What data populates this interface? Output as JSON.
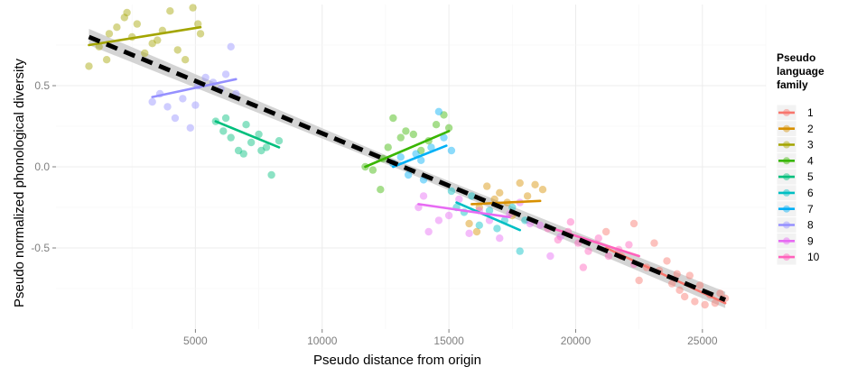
{
  "chart_data": {
    "type": "scatter",
    "xlabel": "Pseudo distance from origin",
    "ylabel": "Pseudo normalized phonological diversity",
    "xlim": [
      -500,
      27500
    ],
    "ylim": [
      -1.0,
      1.0
    ],
    "x_ticks": [
      5000,
      10000,
      15000,
      20000,
      25000
    ],
    "x_tick_labels": [
      "5000",
      "10000",
      "15000",
      "20000",
      "25000"
    ],
    "y_ticks": [
      0.5,
      0.0,
      -0.5
    ],
    "y_tick_labels": [
      "0.5",
      "0.0",
      "-0.5"
    ],
    "grid": true,
    "background": "#ffffff",
    "legend": {
      "title_lines": [
        "Pseudo",
        "language",
        "family"
      ],
      "position": "right",
      "entries": [
        {
          "label": "1",
          "color": "#F8766D"
        },
        {
          "label": "2",
          "color": "#D89000"
        },
        {
          "label": "3",
          "color": "#A3A500"
        },
        {
          "label": "4",
          "color": "#39B600"
        },
        {
          "label": "5",
          "color": "#00BF7D"
        },
        {
          "label": "6",
          "color": "#00BFC4"
        },
        {
          "label": "7",
          "color": "#00B0F6"
        },
        {
          "label": "8",
          "color": "#9590FF"
        },
        {
          "label": "9",
          "color": "#E76BF3"
        },
        {
          "label": "10",
          "color": "#FF62BC"
        }
      ]
    },
    "overall_fit": {
      "x": [
        800,
        25900
      ],
      "y": [
        0.8,
        -0.82
      ],
      "style": "dashed",
      "color": "#000000",
      "confidence_band_color": "#cccccc"
    },
    "series": [
      {
        "name": "1",
        "color": "#F8766D",
        "points": [
          [
            21200,
            -0.4
          ],
          [
            21800,
            -0.55
          ],
          [
            22300,
            -0.35
          ],
          [
            22500,
            -0.7
          ],
          [
            22800,
            -0.62
          ],
          [
            23100,
            -0.47
          ],
          [
            23300,
            -0.64
          ],
          [
            23600,
            -0.58
          ],
          [
            23800,
            -0.72
          ],
          [
            24100,
            -0.76
          ],
          [
            24300,
            -0.8
          ],
          [
            24500,
            -0.67
          ],
          [
            24700,
            -0.83
          ],
          [
            24900,
            -0.73
          ],
          [
            25100,
            -0.85
          ],
          [
            25300,
            -0.79
          ],
          [
            25500,
            -0.84
          ],
          [
            25700,
            -0.78
          ],
          [
            25900,
            -0.81
          ],
          [
            24000,
            -0.66
          ]
        ],
        "fit": [
          [
            21200,
            -0.5
          ],
          [
            25900,
            -0.84
          ]
        ]
      },
      {
        "name": "2",
        "color": "#D89000",
        "points": [
          [
            15800,
            -0.35
          ],
          [
            16200,
            -0.25
          ],
          [
            16500,
            -0.12
          ],
          [
            16800,
            -0.2
          ],
          [
            17000,
            -0.16
          ],
          [
            17300,
            -0.22
          ],
          [
            17500,
            -0.3
          ],
          [
            17800,
            -0.1
          ],
          [
            18100,
            -0.18
          ],
          [
            18400,
            -0.11
          ],
          [
            18700,
            -0.14
          ],
          [
            16100,
            -0.4
          ]
        ],
        "fit": [
          [
            15900,
            -0.23
          ],
          [
            18600,
            -0.21
          ]
        ]
      },
      {
        "name": "3",
        "color": "#A3A500",
        "points": [
          [
            800,
            0.62
          ],
          [
            1200,
            0.74
          ],
          [
            1600,
            0.82
          ],
          [
            1900,
            0.86
          ],
          [
            2200,
            0.92
          ],
          [
            2500,
            0.8
          ],
          [
            2700,
            0.88
          ],
          [
            3000,
            0.7
          ],
          [
            3300,
            0.76
          ],
          [
            3700,
            0.84
          ],
          [
            4000,
            0.96
          ],
          [
            4300,
            0.72
          ],
          [
            4600,
            0.66
          ],
          [
            4900,
            0.98
          ],
          [
            5100,
            0.88
          ],
          [
            5200,
            0.82
          ],
          [
            2300,
            0.95
          ],
          [
            3500,
            0.78
          ],
          [
            1500,
            0.66
          ]
        ],
        "fit": [
          [
            800,
            0.75
          ],
          [
            5200,
            0.86
          ]
        ]
      },
      {
        "name": "4",
        "color": "#39B600",
        "points": [
          [
            11700,
            0.0
          ],
          [
            12000,
            -0.02
          ],
          [
            12300,
            -0.14
          ],
          [
            12600,
            0.12
          ],
          [
            12800,
            0.3
          ],
          [
            13100,
            0.18
          ],
          [
            13300,
            0.22
          ],
          [
            13600,
            0.2
          ],
          [
            13900,
            0.1
          ],
          [
            14200,
            0.16
          ],
          [
            14500,
            0.26
          ],
          [
            14800,
            0.32
          ],
          [
            15000,
            0.24
          ],
          [
            12400,
            0.05
          ]
        ],
        "fit": [
          [
            11700,
            0.0
          ],
          [
            15000,
            0.22
          ]
        ]
      },
      {
        "name": "5",
        "color": "#00BF7D",
        "points": [
          [
            5800,
            0.28
          ],
          [
            6100,
            0.22
          ],
          [
            6400,
            0.18
          ],
          [
            6700,
            0.1
          ],
          [
            7000,
            0.26
          ],
          [
            7200,
            0.15
          ],
          [
            7500,
            0.2
          ],
          [
            7800,
            0.12
          ],
          [
            8000,
            -0.05
          ],
          [
            8300,
            0.16
          ],
          [
            6900,
            0.08
          ],
          [
            7600,
            0.1
          ],
          [
            6200,
            0.3
          ]
        ],
        "fit": [
          [
            5800,
            0.28
          ],
          [
            8300,
            0.12
          ]
        ]
      },
      {
        "name": "6",
        "color": "#00BFC4",
        "points": [
          [
            15300,
            -0.25
          ],
          [
            15600,
            -0.28
          ],
          [
            15900,
            -0.18
          ],
          [
            16200,
            -0.36
          ],
          [
            16600,
            -0.27
          ],
          [
            16900,
            -0.38
          ],
          [
            17200,
            -0.33
          ],
          [
            17500,
            -0.25
          ],
          [
            17800,
            -0.52
          ],
          [
            18000,
            -0.33
          ],
          [
            15100,
            -0.15
          ]
        ],
        "fit": [
          [
            15300,
            -0.22
          ],
          [
            17800,
            -0.39
          ]
        ]
      },
      {
        "name": "7",
        "color": "#00B0F6",
        "points": [
          [
            12800,
            0.02
          ],
          [
            13100,
            0.06
          ],
          [
            13400,
            -0.05
          ],
          [
            13700,
            0.08
          ],
          [
            14000,
            -0.08
          ],
          [
            14300,
            0.12
          ],
          [
            14600,
            0.34
          ],
          [
            14800,
            0.18
          ],
          [
            15100,
            0.1
          ],
          [
            13900,
            0.04
          ]
        ],
        "fit": [
          [
            12800,
            0.0
          ],
          [
            14900,
            0.13
          ]
        ]
      },
      {
        "name": "8",
        "color": "#9590FF",
        "points": [
          [
            3300,
            0.4
          ],
          [
            3600,
            0.45
          ],
          [
            3900,
            0.37
          ],
          [
            4200,
            0.3
          ],
          [
            4500,
            0.42
          ],
          [
            4800,
            0.24
          ],
          [
            5100,
            0.5
          ],
          [
            5400,
            0.55
          ],
          [
            5700,
            0.52
          ],
          [
            6000,
            0.48
          ],
          [
            6200,
            0.57
          ],
          [
            6400,
            0.74
          ],
          [
            6600,
            0.45
          ],
          [
            5000,
            0.38
          ]
        ],
        "fit": [
          [
            3300,
            0.43
          ],
          [
            6600,
            0.54
          ]
        ]
      },
      {
        "name": "9",
        "color": "#E76BF3",
        "points": [
          [
            13800,
            -0.25
          ],
          [
            14200,
            -0.4
          ],
          [
            14600,
            -0.33
          ],
          [
            15000,
            -0.3
          ],
          [
            15400,
            -0.2
          ],
          [
            15800,
            -0.41
          ],
          [
            16200,
            -0.27
          ],
          [
            16600,
            -0.33
          ],
          [
            17000,
            -0.44
          ],
          [
            17400,
            -0.29
          ],
          [
            17800,
            -0.22
          ],
          [
            18200,
            -0.35
          ],
          [
            18600,
            -0.36
          ],
          [
            19000,
            -0.55
          ],
          [
            19400,
            -0.43
          ],
          [
            14000,
            -0.18
          ]
        ],
        "fit": [
          [
            13800,
            -0.23
          ],
          [
            17400,
            -0.31
          ]
        ]
      },
      {
        "name": "10",
        "color": "#FF62BC",
        "points": [
          [
            18900,
            -0.38
          ],
          [
            19300,
            -0.45
          ],
          [
            19700,
            -0.4
          ],
          [
            20100,
            -0.47
          ],
          [
            20500,
            -0.52
          ],
          [
            20900,
            -0.44
          ],
          [
            21300,
            -0.55
          ],
          [
            21700,
            -0.51
          ],
          [
            22100,
            -0.48
          ],
          [
            22300,
            -0.6
          ],
          [
            20300,
            -0.62
          ],
          [
            19800,
            -0.34
          ]
        ],
        "fit": [
          [
            18900,
            -0.37
          ],
          [
            22500,
            -0.55
          ]
        ]
      }
    ]
  }
}
